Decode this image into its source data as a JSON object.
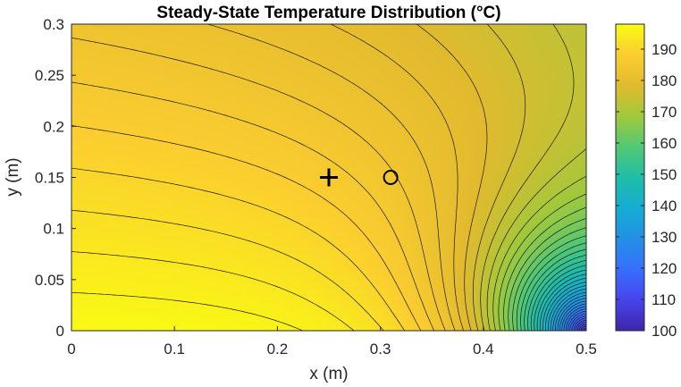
{
  "chart_data": {
    "type": "heatmap",
    "title": "Steady-State Temperature Distribution (°C)",
    "xlabel": "x (m)",
    "ylabel": "y (m)",
    "xlim": [
      0,
      0.5
    ],
    "ylim": [
      0,
      0.3
    ],
    "x_ticks": [
      "0",
      "0.1",
      "0.2",
      "0.3",
      "0.4",
      "0.5"
    ],
    "x_tick_values": [
      0,
      0.1,
      0.2,
      0.3,
      0.4,
      0.5
    ],
    "y_ticks": [
      "0",
      "0.05",
      "0.1",
      "0.15",
      "0.2",
      "0.25",
      "0.3"
    ],
    "y_tick_values": [
      0,
      0.05,
      0.1,
      0.15,
      0.2,
      0.25,
      0.3
    ],
    "colorbar": {
      "ticks": [
        "100",
        "110",
        "120",
        "130",
        "140",
        "150",
        "160",
        "170",
        "180",
        "190"
      ],
      "tick_values": [
        100,
        110,
        120,
        130,
        140,
        150,
        160,
        170,
        180,
        190
      ],
      "clim": [
        100,
        198
      ],
      "colormap": "parula"
    },
    "markers": [
      {
        "symbol": "plus",
        "x": 0.25,
        "y": 0.15
      },
      {
        "symbol": "circle",
        "x": 0.31,
        "y": 0.15
      }
    ],
    "field": {
      "description": "temperature falls from ~198 at bottom-left to ~100 at the right edge near (0.5, 0)",
      "contour_step": 2
    }
  }
}
